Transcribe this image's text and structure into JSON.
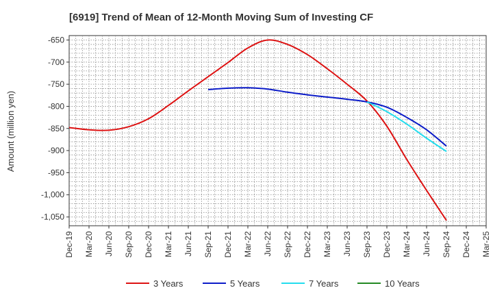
{
  "chart_data": {
    "type": "line",
    "title": "[6919]  Trend of Mean of 12-Month Moving Sum of Investing CF",
    "ylabel": "Amount (million yen)",
    "xlabel": "",
    "ylim": [
      -1070,
      -640
    ],
    "yticks": [
      -650,
      -700,
      -750,
      -800,
      -850,
      -900,
      -950,
      -1000,
      -1050
    ],
    "ytick_labels": [
      "-650",
      "-700",
      "-750",
      "-800",
      "-850",
      "-900",
      "-950",
      "-1,000",
      "-1,050"
    ],
    "categories": [
      "Dec-19",
      "Mar-20",
      "Jun-20",
      "Sep-20",
      "Dec-20",
      "Mar-21",
      "Jun-21",
      "Sep-21",
      "Dec-21",
      "Mar-22",
      "Jun-22",
      "Sep-22",
      "Dec-22",
      "Mar-23",
      "Jun-23",
      "Sep-23",
      "Dec-23",
      "Mar-24",
      "Jun-24",
      "Sep-24",
      "Dec-24",
      "Mar-25"
    ],
    "series": [
      {
        "name": "3 Years",
        "color": "#dd1111",
        "values": [
          -848,
          -853,
          -854,
          -846,
          -828,
          -798,
          -765,
          -733,
          -701,
          -668,
          -650,
          -660,
          -683,
          -715,
          -750,
          -788,
          -845,
          -920,
          -990,
          -1058,
          null,
          null
        ]
      },
      {
        "name": "5 Years",
        "color": "#0a1ac8",
        "values": [
          null,
          null,
          null,
          null,
          null,
          null,
          null,
          -762,
          -759,
          -758,
          -761,
          -768,
          -774,
          -779,
          -784,
          -790,
          -802,
          -825,
          -853,
          -890,
          null,
          null
        ]
      },
      {
        "name": "7 Years",
        "color": "#22ddee",
        "values": [
          null,
          null,
          null,
          null,
          null,
          null,
          null,
          null,
          null,
          null,
          null,
          null,
          null,
          null,
          null,
          -790,
          -812,
          -840,
          -872,
          -902,
          null,
          null
        ]
      },
      {
        "name": "10 Years",
        "color": "#228822",
        "values": [
          null,
          null,
          null,
          null,
          null,
          null,
          null,
          null,
          null,
          null,
          null,
          null,
          null,
          null,
          null,
          null,
          null,
          null,
          null,
          null,
          null,
          null
        ]
      }
    ]
  }
}
